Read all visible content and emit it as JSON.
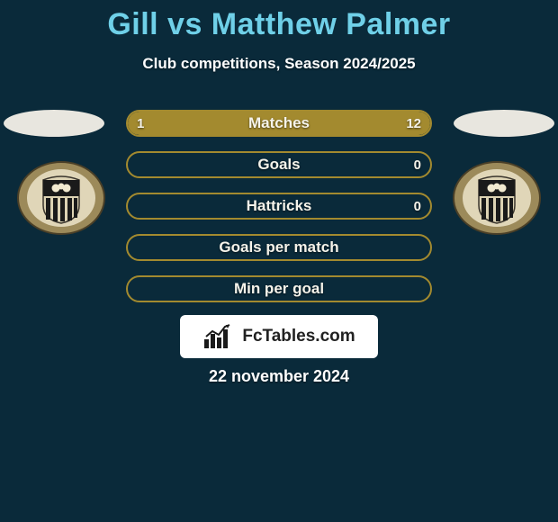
{
  "header": {
    "title": "Gill vs Matthew Palmer",
    "subtitle": "Club competitions, Season 2024/2025",
    "title_color": "#6fd0e8"
  },
  "stats": [
    {
      "label": "Matches",
      "left_val": "1",
      "right_val": "12",
      "left_pct": 8,
      "right_pct": 92
    },
    {
      "label": "Goals",
      "left_val": "",
      "right_val": "0",
      "left_pct": 0,
      "right_pct": 0
    },
    {
      "label": "Hattricks",
      "left_val": "",
      "right_val": "0",
      "left_pct": 0,
      "right_pct": 0
    },
    {
      "label": "Goals per match",
      "left_val": "",
      "right_val": "",
      "left_pct": 0,
      "right_pct": 0
    },
    {
      "label": "Min per goal",
      "left_val": "",
      "right_val": "",
      "left_pct": 0,
      "right_pct": 0
    }
  ],
  "colors": {
    "bar_fill": "#a38a2f",
    "bar_border": "#a38a2f",
    "bg": "#0a2a3a",
    "oval_bg": "#e8e6df"
  },
  "footer": {
    "site_name": "FcTables.com",
    "date": "22 november 2024"
  }
}
